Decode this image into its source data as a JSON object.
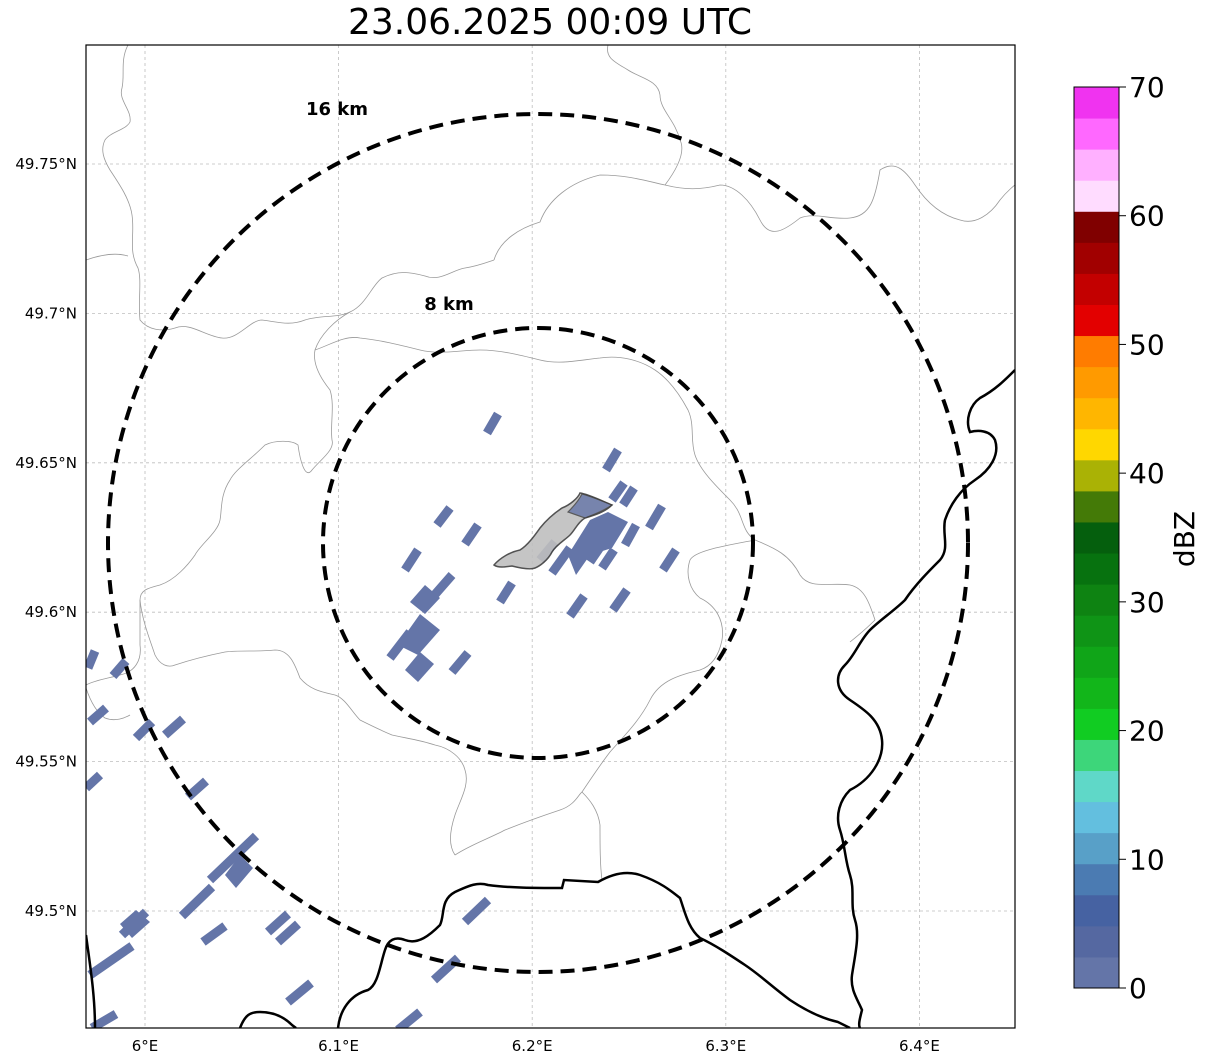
{
  "title": "23.06.2025 00:09 UTC",
  "map": {
    "lon_ticks": [
      {
        "value": 6.0,
        "label": "6°E"
      },
      {
        "value": 6.1,
        "label": "6.1°E"
      },
      {
        "value": 6.2,
        "label": "6.2°E"
      },
      {
        "value": 6.3,
        "label": "6.3°E"
      },
      {
        "value": 6.4,
        "label": "6.4°E"
      }
    ],
    "lat_ticks": [
      {
        "value": 49.75,
        "label": "49.75°N"
      },
      {
        "value": 49.7,
        "label": "49.7°N"
      },
      {
        "value": 49.65,
        "label": "49.65°N"
      },
      {
        "value": 49.6,
        "label": "49.6°N"
      },
      {
        "value": 49.55,
        "label": "49.55°N"
      },
      {
        "value": 49.5,
        "label": "49.5°N"
      }
    ],
    "rings": [
      {
        "label": "8 km"
      },
      {
        "label": "16 km"
      }
    ],
    "gridlines": true,
    "echo_color": "#6475a8",
    "city_fill": "#bfbfbf"
  },
  "colorbar": {
    "label": "dBZ",
    "ticks": [
      "0",
      "10",
      "20",
      "30",
      "40",
      "50",
      "60",
      "70"
    ],
    "colors": [
      "#6475a8",
      "#5568a1",
      "#4662a2",
      "#4b7bb2",
      "#58a0c8",
      "#63bfdf",
      "#5fd8c8",
      "#3dd67a",
      "#11cc22",
      "#12b61a",
      "#10a518",
      "#0f9416",
      "#0e8312",
      "#07720f",
      "#055f0d",
      "#447a07",
      "#aab205",
      "#ffd700",
      "#ffb600",
      "#ff9a00",
      "#ff7c00",
      "#e30000",
      "#c30000",
      "#a10000",
      "#800000",
      "#ffdcff",
      "#ffb0ff",
      "#ff68ff",
      "#f033f0"
    ]
  }
}
